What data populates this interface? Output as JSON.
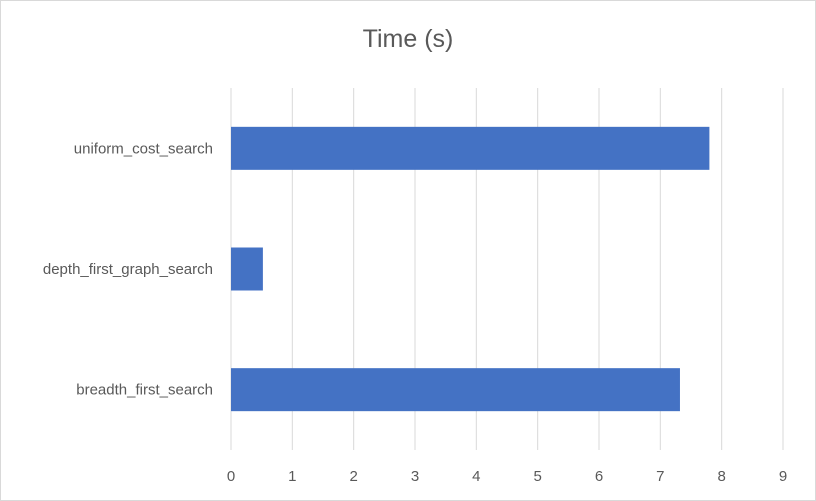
{
  "chart_data": {
    "type": "bar",
    "orientation": "horizontal",
    "title": "Time (s)",
    "categories": [
      "uniform_cost_search",
      "depth_first_graph_search",
      "breadth_first_search"
    ],
    "values": [
      7.8,
      0.52,
      7.32
    ],
    "xlim": [
      0,
      9
    ],
    "x_ticks": [
      "0",
      "1",
      "2",
      "3",
      "4",
      "5",
      "6",
      "7",
      "8",
      "9"
    ],
    "grid": true,
    "legend": "none",
    "bar_color": "#4472c4",
    "grid_color": "#d9d9d9",
    "text_color": "#595959"
  }
}
